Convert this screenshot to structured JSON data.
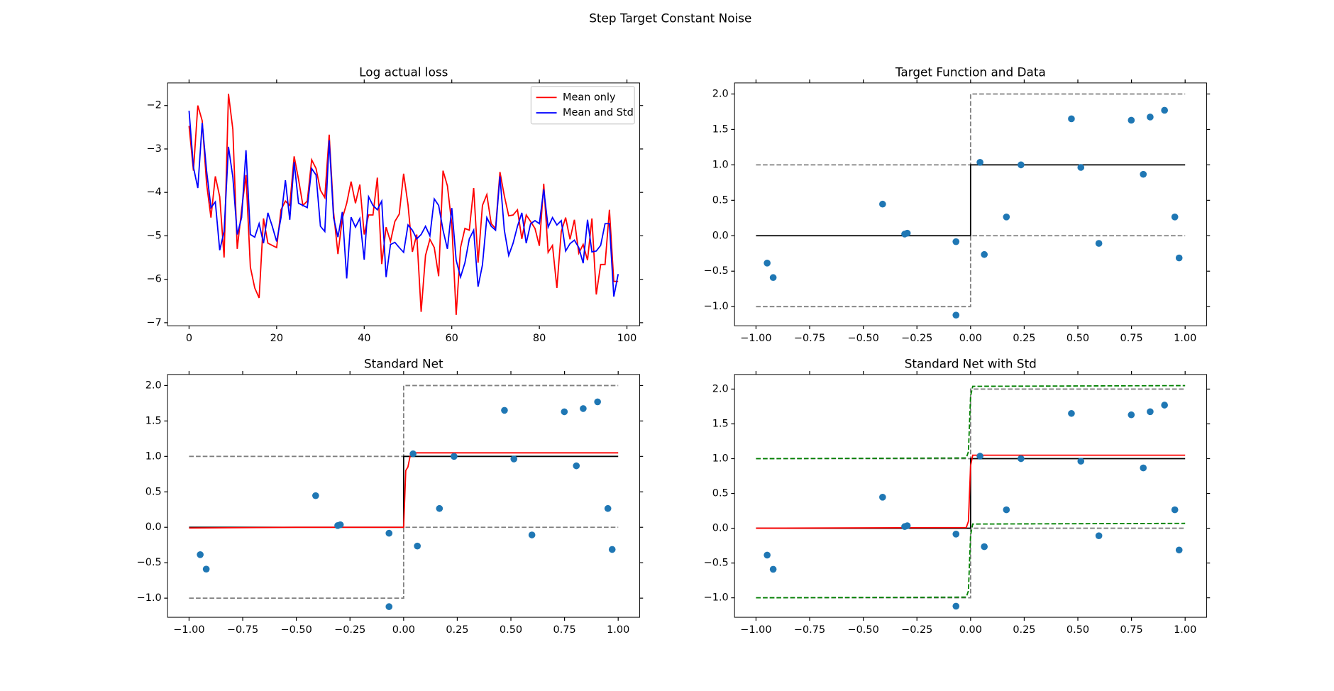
{
  "title": "Step Target Constant Noise",
  "chart_data": [
    {
      "type": "line",
      "title": "Log actual loss",
      "xlim": [
        -4.9,
        102.9
      ],
      "ylim": [
        -7.07,
        -1.48
      ],
      "xticks": [
        0,
        20,
        40,
        60,
        80,
        100
      ],
      "yticks": [
        {
          "value": -7,
          "label": "−7"
        },
        {
          "value": -6,
          "label": "−6"
        },
        {
          "value": -5,
          "label": "−5"
        },
        {
          "value": -4,
          "label": "−4"
        },
        {
          "value": -3,
          "label": "−3"
        },
        {
          "value": -2,
          "label": "−2"
        }
      ],
      "legend": "upper right",
      "x": [
        0,
        1,
        2,
        3,
        4,
        5,
        6,
        7,
        8,
        9,
        10,
        11,
        12,
        13,
        14,
        15,
        16,
        17,
        18,
        19,
        20,
        21,
        22,
        23,
        24,
        25,
        26,
        27,
        28,
        29,
        30,
        31,
        32,
        33,
        34,
        35,
        36,
        37,
        38,
        39,
        40,
        41,
        42,
        43,
        44,
        45,
        46,
        47,
        48,
        49,
        50,
        51,
        52,
        53,
        54,
        55,
        56,
        57,
        58,
        59,
        60,
        61,
        62,
        63,
        64,
        65,
        66,
        67,
        68,
        69,
        70,
        71,
        72,
        73,
        74,
        75,
        76,
        77,
        78,
        79,
        80,
        81,
        82,
        83,
        84,
        85,
        86,
        87,
        88,
        89,
        90,
        91,
        92,
        93,
        94,
        95,
        96,
        97,
        98
      ],
      "series": [
        {
          "name": "Mean only",
          "color": "#ff0000",
          "style": "solid",
          "values": [
            -2.47,
            -3.5,
            -2.0,
            -2.35,
            -3.8,
            -4.58,
            -3.63,
            -4.1,
            -5.5,
            -1.73,
            -2.55,
            -5.3,
            -4.4,
            -3.6,
            -5.72,
            -6.2,
            -6.43,
            -4.6,
            -5.17,
            -5.22,
            -5.27,
            -4.4,
            -4.2,
            -4.3,
            -3.17,
            -3.7,
            -4.3,
            -4.2,
            -3.25,
            -3.45,
            -3.95,
            -4.12,
            -2.67,
            -4.45,
            -5.42,
            -4.6,
            -4.25,
            -3.75,
            -4.25,
            -3.82,
            -4.97,
            -4.52,
            -4.52,
            -3.66,
            -5.65,
            -4.8,
            -5.13,
            -4.67,
            -4.5,
            -3.57,
            -4.28,
            -5.37,
            -4.97,
            -6.75,
            -5.45,
            -5.08,
            -5.27,
            -5.93,
            -3.5,
            -3.85,
            -4.73,
            -6.82,
            -5.27,
            -4.83,
            -4.87,
            -3.9,
            -5.62,
            -4.3,
            -4.05,
            -4.72,
            -4.83,
            -3.53,
            -4.08,
            -4.54,
            -4.52,
            -4.4,
            -5.07,
            -4.52,
            -4.67,
            -4.83,
            -5.23,
            -3.8,
            -5.38,
            -5.22,
            -6.2,
            -4.9,
            -4.58,
            -5.08,
            -4.63,
            -5.4,
            -5.2,
            -5.56,
            -4.6,
            -6.35,
            -5.66,
            -5.66,
            -4.4,
            -6.05,
            -6.05
          ]
        },
        {
          "name": "Mean and Std",
          "color": "#0000ff",
          "style": "solid",
          "values": [
            -2.12,
            -3.42,
            -3.9,
            -2.4,
            -3.5,
            -4.35,
            -4.22,
            -5.33,
            -4.9,
            -2.95,
            -3.65,
            -4.97,
            -4.58,
            -3.03,
            -4.97,
            -5.03,
            -4.72,
            -5.17,
            -4.47,
            -4.78,
            -5.13,
            -4.58,
            -3.72,
            -4.63,
            -3.3,
            -4.25,
            -4.3,
            -4.35,
            -3.45,
            -3.6,
            -4.78,
            -4.9,
            -2.8,
            -4.58,
            -5.03,
            -4.45,
            -5.98,
            -4.57,
            -4.8,
            -4.6,
            -5.55,
            -4.1,
            -4.3,
            -4.4,
            -4.2,
            -5.95,
            -5.2,
            -5.15,
            -5.27,
            -5.38,
            -4.75,
            -4.87,
            -5.07,
            -4.97,
            -4.78,
            -5.0,
            -4.15,
            -4.3,
            -4.87,
            -5.3,
            -4.36,
            -5.56,
            -5.95,
            -5.62,
            -5.07,
            -4.87,
            -6.17,
            -5.67,
            -4.58,
            -4.78,
            -4.87,
            -3.63,
            -4.87,
            -5.45,
            -5.17,
            -4.78,
            -4.47,
            -5.17,
            -4.72,
            -4.65,
            -4.72,
            -3.93,
            -4.8,
            -4.58,
            -4.75,
            -4.65,
            -5.35,
            -5.18,
            -5.1,
            -5.27,
            -5.63,
            -4.63,
            -5.37,
            -5.35,
            -5.22,
            -4.72,
            -4.72,
            -6.4,
            -5.88
          ]
        }
      ]
    },
    {
      "type": "line",
      "title": "Target Function and Data",
      "xlim": [
        -1.1,
        1.1
      ],
      "ylim": [
        -1.27,
        2.156
      ],
      "xticks": [
        {
          "value": -1,
          "label": "−1.00"
        },
        {
          "value": -0.75,
          "label": "−0.75"
        },
        {
          "value": -0.5,
          "label": "−0.50"
        },
        {
          "value": -0.25,
          "label": "−0.25"
        },
        {
          "value": 0,
          "label": "0.00"
        },
        {
          "value": 0.25,
          "label": "0.25"
        },
        {
          "value": 0.5,
          "label": "0.50"
        },
        {
          "value": 0.75,
          "label": "0.75"
        },
        {
          "value": 1,
          "label": "1.00"
        }
      ],
      "yticks": [
        {
          "value": -1,
          "label": "−1.0"
        },
        {
          "value": -0.5,
          "label": "−0.5"
        },
        {
          "value": 0,
          "label": "0.0"
        },
        0.5,
        {
          "value": 1,
          "label": "1.0"
        },
        1.5,
        {
          "value": 2,
          "label": "2.0"
        }
      ],
      "series": [
        {
          "color": "#808080",
          "style": "dashed",
          "x": [
            -1,
            0,
            0,
            1
          ],
          "values": [
            1,
            1,
            2,
            2
          ]
        },
        {
          "color": "#808080",
          "style": "dashed",
          "x": [
            -1,
            0,
            0,
            1
          ],
          "values": [
            -1,
            -1,
            0,
            0
          ]
        },
        {
          "color": "#000000",
          "style": "solid",
          "x": [
            -1,
            0,
            0,
            1
          ],
          "values": [
            0,
            0,
            1,
            1
          ]
        },
        {
          "color": "#1f77b4",
          "style": "none",
          "marker": "o",
          "x": [
            -0.948,
            -0.92,
            -0.41,
            -0.307,
            -0.295,
            -0.068,
            -0.068,
            0.044,
            0.064,
            0.167,
            0.235,
            0.47,
            0.514,
            0.598,
            0.749,
            0.805,
            0.837,
            0.904,
            0.952,
            0.972
          ],
          "values": [
            -0.386,
            -0.59,
            0.446,
            0.024,
            0.036,
            -0.084,
            -1.12,
            1.036,
            -0.265,
            0.265,
            1.0,
            1.65,
            0.964,
            -0.108,
            1.63,
            0.867,
            1.675,
            1.77,
            0.265,
            -0.313
          ]
        }
      ]
    },
    {
      "type": "line",
      "title": "Standard Net",
      "xlim": [
        -1.1,
        1.1
      ],
      "ylim": [
        -1.27,
        2.156
      ],
      "xticks": [
        {
          "value": -1,
          "label": "−1.00"
        },
        {
          "value": -0.75,
          "label": "−0.75"
        },
        {
          "value": -0.5,
          "label": "−0.50"
        },
        {
          "value": -0.25,
          "label": "−0.25"
        },
        {
          "value": 0,
          "label": "0.00"
        },
        {
          "value": 0.25,
          "label": "0.25"
        },
        {
          "value": 0.5,
          "label": "0.50"
        },
        {
          "value": 0.75,
          "label": "0.75"
        },
        {
          "value": 1,
          "label": "1.00"
        }
      ],
      "yticks": [
        {
          "value": -1,
          "label": "−1.0"
        },
        {
          "value": -0.5,
          "label": "−0.5"
        },
        {
          "value": 0,
          "label": "0.0"
        },
        0.5,
        {
          "value": 1,
          "label": "1.0"
        },
        1.5,
        {
          "value": 2,
          "label": "2.0"
        }
      ],
      "series": [
        {
          "color": "#808080",
          "style": "dashed",
          "x": [
            -1,
            0,
            0,
            1
          ],
          "values": [
            1,
            1,
            2,
            2
          ]
        },
        {
          "color": "#808080",
          "style": "dashed",
          "x": [
            -1,
            0,
            0,
            1
          ],
          "values": [
            -1,
            -1,
            0,
            0
          ]
        },
        {
          "color": "#000000",
          "style": "solid",
          "x": [
            -1,
            0,
            0,
            1
          ],
          "values": [
            0,
            0,
            1,
            1
          ]
        },
        {
          "color": "#ff0000",
          "style": "solid",
          "x": [
            -1,
            -0.5,
            0,
            0.01,
            0.02,
            0.03,
            0.04,
            0.5,
            1
          ],
          "values": [
            -0.01,
            0,
            0,
            0.8,
            0.85,
            1.0,
            1.05,
            1.05,
            1.05
          ]
        },
        {
          "color": "#1f77b4",
          "style": "none",
          "marker": "o",
          "x": [
            -0.948,
            -0.92,
            -0.41,
            -0.307,
            -0.295,
            -0.068,
            -0.068,
            0.044,
            0.064,
            0.167,
            0.235,
            0.47,
            0.514,
            0.598,
            0.749,
            0.805,
            0.837,
            0.904,
            0.952,
            0.972
          ],
          "values": [
            -0.386,
            -0.59,
            0.446,
            0.024,
            0.036,
            -0.084,
            -1.12,
            1.036,
            -0.265,
            0.265,
            1.0,
            1.65,
            0.964,
            -0.108,
            1.63,
            0.867,
            1.675,
            1.77,
            0.265,
            -0.313
          ]
        }
      ]
    },
    {
      "type": "line",
      "title": "Standard Net with Std",
      "xlim": [
        -1.1,
        1.1
      ],
      "ylim": [
        -1.28,
        2.21
      ],
      "xticks": [
        {
          "value": -1,
          "label": "−1.00"
        },
        {
          "value": -0.75,
          "label": "−0.75"
        },
        {
          "value": -0.5,
          "label": "−0.50"
        },
        {
          "value": -0.25,
          "label": "−0.25"
        },
        {
          "value": 0,
          "label": "0.00"
        },
        {
          "value": 0.25,
          "label": "0.25"
        },
        {
          "value": 0.5,
          "label": "0.50"
        },
        {
          "value": 0.75,
          "label": "0.75"
        },
        {
          "value": 1,
          "label": "1.00"
        }
      ],
      "yticks": [
        {
          "value": -1,
          "label": "−1.0"
        },
        {
          "value": -0.5,
          "label": "−0.5"
        },
        {
          "value": 0,
          "label": "0.0"
        },
        0.5,
        {
          "value": 1,
          "label": "1.0"
        },
        1.5,
        {
          "value": 2,
          "label": "2.0"
        }
      ],
      "series": [
        {
          "color": "#808080",
          "style": "dashed",
          "x": [
            -1,
            0,
            0,
            1
          ],
          "values": [
            1,
            1,
            2,
            2
          ]
        },
        {
          "color": "#808080",
          "style": "dashed",
          "x": [
            -1,
            0,
            0,
            1
          ],
          "values": [
            -1,
            -1,
            0,
            0
          ]
        },
        {
          "color": "#000000",
          "style": "solid",
          "x": [
            -1,
            0,
            0,
            1
          ],
          "values": [
            0,
            0,
            1,
            1
          ]
        },
        {
          "color": "#ff0000",
          "style": "solid",
          "x": [
            -1,
            -0.02,
            -0.01,
            0,
            0.01,
            1
          ],
          "values": [
            0,
            0.01,
            0.1,
            0.9,
            1.05,
            1.05
          ]
        },
        {
          "color": "#008000",
          "style": "dashed",
          "x": [
            -1,
            -0.02,
            -0.01,
            0,
            0.01,
            1
          ],
          "values": [
            1.0,
            1.01,
            1.1,
            1.9,
            2.04,
            2.05
          ]
        },
        {
          "color": "#008000",
          "style": "dashed",
          "x": [
            -1,
            -0.02,
            -0.01,
            0,
            0.01,
            1
          ],
          "values": [
            -1.0,
            -0.99,
            -0.9,
            -0.1,
            0.06,
            0.07
          ]
        },
        {
          "color": "#1f77b4",
          "style": "none",
          "marker": "o",
          "x": [
            -0.948,
            -0.92,
            -0.41,
            -0.307,
            -0.295,
            -0.068,
            -0.068,
            0.044,
            0.064,
            0.167,
            0.235,
            0.47,
            0.514,
            0.598,
            0.749,
            0.805,
            0.837,
            0.904,
            0.952,
            0.972
          ],
          "values": [
            -0.386,
            -0.59,
            0.446,
            0.024,
            0.036,
            -0.084,
            -1.12,
            1.036,
            -0.265,
            0.265,
            1.0,
            1.65,
            0.964,
            -0.108,
            1.63,
            0.867,
            1.675,
            1.77,
            0.265,
            -0.313
          ]
        }
      ]
    }
  ]
}
